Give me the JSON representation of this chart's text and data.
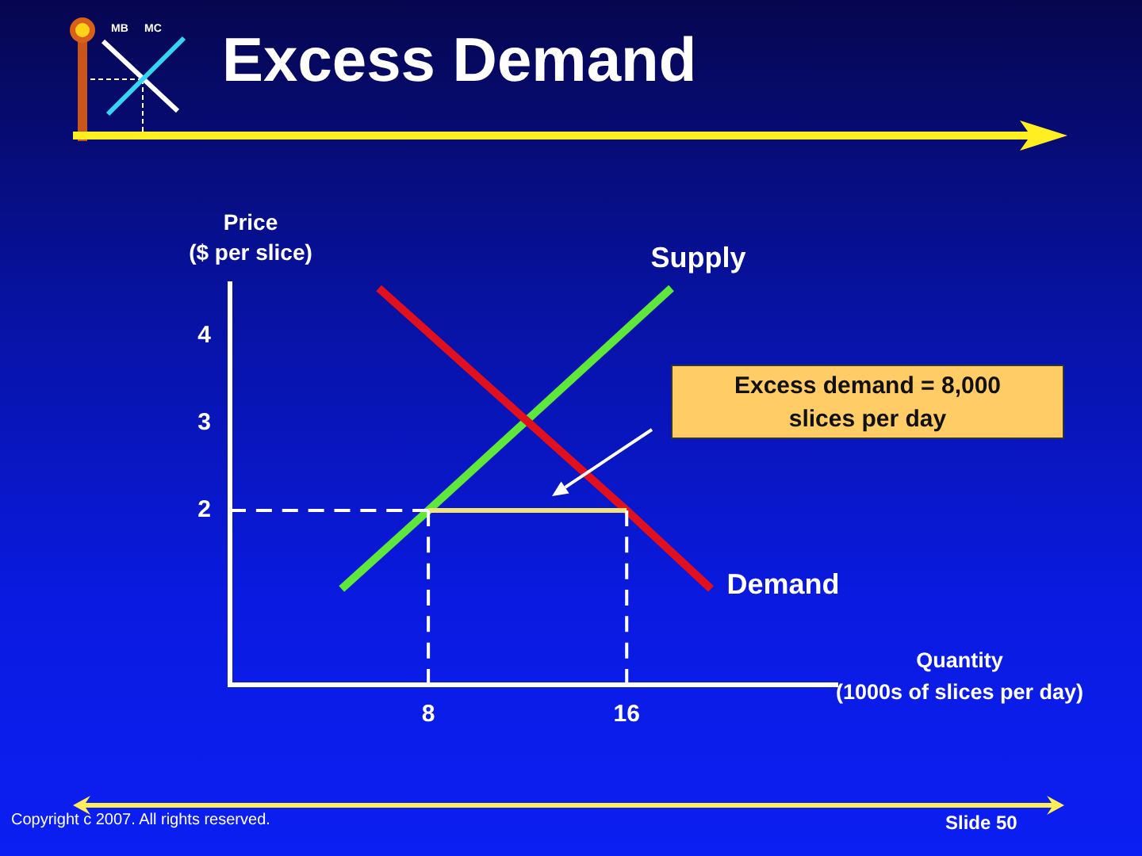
{
  "chart_data": {
    "type": "line",
    "title": "Excess Demand",
    "xlabel": "Quantity\n(1000s of slices per day)",
    "ylabel": "Price\n($ per slice)",
    "xlim": [
      0,
      24.5
    ],
    "ylim": [
      0,
      4.6
    ],
    "xticks": [
      8,
      16
    ],
    "yticks": [
      2,
      3,
      4
    ],
    "grid": false,
    "legend": false,
    "marker": "none",
    "series": [
      {
        "name": "Supply",
        "color": "#5ee83c",
        "x": [
          4.5,
          8,
          17.8
        ],
        "values": [
          1.1,
          2,
          4.55
        ]
      },
      {
        "name": "Demand",
        "color": "#e0101e",
        "x": [
          6,
          16,
          19.4
        ],
        "values": [
          4.55,
          2,
          1.1
        ]
      },
      {
        "color": "#f2e27a",
        "x": [
          8,
          16
        ],
        "values": [
          2,
          2
        ]
      },
      {
        "color": "#ffffff",
        "line_style": "dashed",
        "x": [
          0,
          8
        ],
        "values": [
          2,
          2
        ]
      },
      {
        "color": "#ffffff",
        "line_style": "dashed",
        "x": [
          8,
          8
        ],
        "values": [
          0,
          2
        ]
      },
      {
        "color": "#ffffff",
        "line_style": "dashed",
        "x": [
          16,
          16
        ],
        "values": [
          0,
          2
        ]
      }
    ],
    "annotations": [
      "Excess demand = 8,000 slices per day",
      "Slide 50",
      "Copyright c 2007. All rights reserved.",
      "MB",
      "MC"
    ]
  }
}
